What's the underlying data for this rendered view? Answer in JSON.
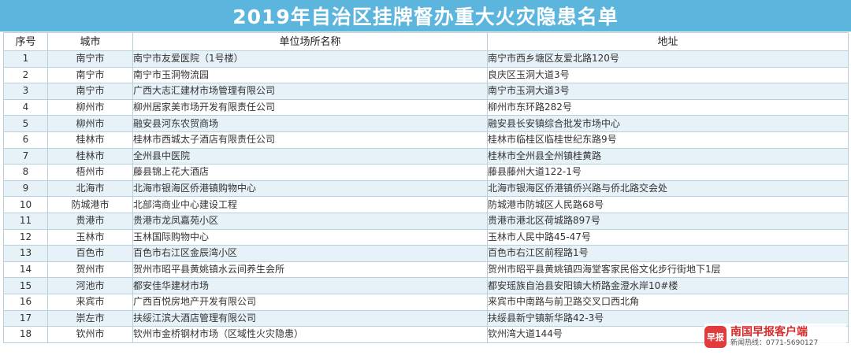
{
  "title": "2019年自治区挂牌督办重大火灾隐患名单",
  "table": {
    "headers": [
      "序号",
      "城市",
      "单位场所名称",
      "地址"
    ],
    "rows": [
      [
        "1",
        "南宁市",
        "南宁市友爱医院（1号楼）",
        "南宁市西乡塘区友爱北路120号"
      ],
      [
        "2",
        "南宁市",
        "南宁市玉洞物流园",
        "良庆区玉洞大道3号"
      ],
      [
        "3",
        "南宁市",
        "广西大志汇建材市场管理有限公司",
        "南宁市玉洞大道3号"
      ],
      [
        "4",
        "柳州市",
        "柳州居家美市场开发有限责任公司",
        "柳州市东环路282号"
      ],
      [
        "5",
        "柳州市",
        "融安县河东农贸商场",
        "融安县长安镇综合批发市场中心"
      ],
      [
        "6",
        "桂林市",
        "桂林市西城太子酒店有限责任公司",
        "桂林市临桂区临桂世纪东路9号"
      ],
      [
        "7",
        "桂林市",
        "全州县中医院",
        "桂林市全州县全州镇桂黄路"
      ],
      [
        "8",
        "梧州市",
        "藤县锦上花大酒店",
        "藤县藤州大道122-1号"
      ],
      [
        "9",
        "北海市",
        "北海市银海区侨港镇购物中心",
        "北海市银海区侨港镇侨兴路与侨北路交会处"
      ],
      [
        "10",
        "防城港市",
        "北部湾商业中心建设工程",
        "防城港市防城区人民路68号"
      ],
      [
        "11",
        "贵港市",
        "贵港市龙凤嘉苑小区",
        "贵港市港北区荷城路897号"
      ],
      [
        "12",
        "玉林市",
        "玉林国际购物中心",
        "玉林市人民中路45-47号"
      ],
      [
        "13",
        "百色市",
        "百色市右江区金辰湾小区",
        "百色市右江区前程路1号"
      ],
      [
        "14",
        "贺州市",
        "贺州市昭平县黄姚镇水云间养生会所",
        "贺州市昭平县黄姚镇四海堂客家民俗文化步行街地下1层"
      ],
      [
        "15",
        "河池市",
        "都安佳华建材市场",
        "都安瑶族自治县安阳镇大桥路金澄水岸10#楼"
      ],
      [
        "16",
        "来宾市",
        "广西百悦房地产开发有限公司",
        "来宾市中南路与前卫路交叉口西北角"
      ],
      [
        "17",
        "崇左市",
        "扶绥江滨大酒店管理有限公司",
        "扶绥县新宁镇新华路42-3号"
      ],
      [
        "18",
        "钦州市",
        "钦州市金桥钢材市场（区域性火灾隐患）",
        "钦州湾大道144号"
      ]
    ]
  },
  "watermark": {
    "badge": "早报",
    "main": "南国早报客户端",
    "sub": "新闻热线：0771-5690127"
  },
  "colors": {
    "title_bg": "#5bb5dd",
    "row_stripe": "#e6f1f8",
    "border": "#b9cfdc",
    "watermark_red": "#d92b2b"
  }
}
